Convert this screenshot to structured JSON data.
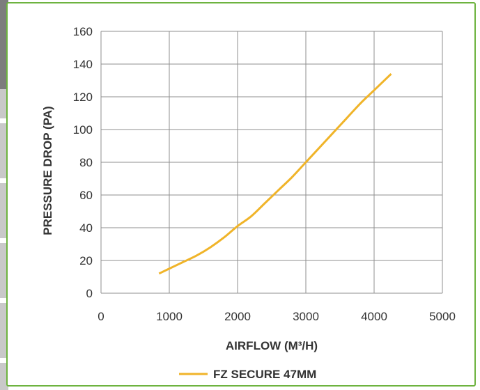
{
  "chart_data": {
    "type": "line",
    "xlabel": "AIRFLOW (M³/H)",
    "ylabel": "PRESSURE DROP (PA)",
    "xlim": [
      0,
      5000
    ],
    "ylim": [
      0,
      160
    ],
    "x_ticks": [
      0,
      1000,
      2000,
      3000,
      4000,
      5000
    ],
    "y_ticks": [
      0,
      20,
      40,
      60,
      80,
      100,
      120,
      140,
      160
    ],
    "grid": true,
    "legend_position": "bottom",
    "series": [
      {
        "name": "FZ SECURE 47MM",
        "color": "#f0b429",
        "points": [
          [
            850,
            12
          ],
          [
            1000,
            15
          ],
          [
            1200,
            19
          ],
          [
            1400,
            23
          ],
          [
            1600,
            28
          ],
          [
            1800,
            34
          ],
          [
            2000,
            41
          ],
          [
            2200,
            47
          ],
          [
            2400,
            55
          ],
          [
            2600,
            63
          ],
          [
            2800,
            71
          ],
          [
            3000,
            80
          ],
          [
            3200,
            89
          ],
          [
            3400,
            98
          ],
          [
            3600,
            107
          ],
          [
            3800,
            116
          ],
          [
            4000,
            124
          ],
          [
            4250,
            134
          ]
        ]
      }
    ]
  }
}
